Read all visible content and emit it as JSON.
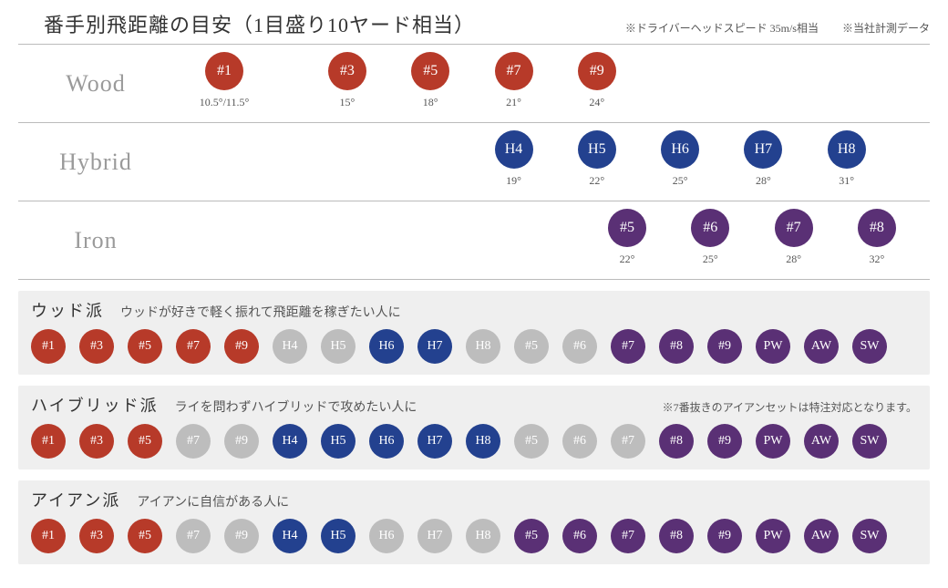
{
  "title": "番手別飛距離の目安（1目盛り10ヤード相当）",
  "notes": [
    "※ドライバーヘッドスピード 35m/s相当",
    "※当社計測データ"
  ],
  "colors": {
    "wood": "#b73a29",
    "hybrid": "#23418f",
    "iron": "#5a3075",
    "muted": "#bdbdbd"
  },
  "chart": {
    "rows": [
      {
        "label": "Wood",
        "color_key": "wood",
        "clubs": [
          {
            "tag": "#1",
            "loft": "10.5°/11.5°",
            "pos": 0.06
          },
          {
            "tag": "#3",
            "loft": "15°",
            "pos": 0.23
          },
          {
            "tag": "#5",
            "loft": "18°",
            "pos": 0.34
          },
          {
            "tag": "#7",
            "loft": "21°",
            "pos": 0.45
          },
          {
            "tag": "#9",
            "loft": "24°",
            "pos": 0.56
          }
        ]
      },
      {
        "label": "Hybrid",
        "color_key": "hybrid",
        "clubs": [
          {
            "tag": "H4",
            "loft": "19°",
            "pos": 0.45
          },
          {
            "tag": "H5",
            "loft": "22°",
            "pos": 0.56
          },
          {
            "tag": "H6",
            "loft": "25°",
            "pos": 0.67
          },
          {
            "tag": "H7",
            "loft": "28°",
            "pos": 0.78
          },
          {
            "tag": "H8",
            "loft": "31°",
            "pos": 0.89
          }
        ]
      },
      {
        "label": "Iron",
        "color_key": "iron",
        "clubs": [
          {
            "tag": "#5",
            "loft": "22°",
            "pos": 0.6
          },
          {
            "tag": "#6",
            "loft": "25°",
            "pos": 0.71
          },
          {
            "tag": "#7",
            "loft": "28°",
            "pos": 0.82
          },
          {
            "tag": "#8",
            "loft": "32°",
            "pos": 0.93
          }
        ]
      }
    ]
  },
  "recs": [
    {
      "title": "ウッド派",
      "sub": "ウッドが好きで軽く振れて飛距離を稼ぎたい人に",
      "note": "",
      "chips": [
        {
          "t": "#1",
          "c": "wood"
        },
        {
          "t": "#3",
          "c": "wood"
        },
        {
          "t": "#5",
          "c": "wood"
        },
        {
          "t": "#7",
          "c": "wood"
        },
        {
          "t": "#9",
          "c": "wood"
        },
        {
          "t": "H4",
          "c": "muted"
        },
        {
          "t": "H5",
          "c": "muted"
        },
        {
          "t": "H6",
          "c": "hybrid"
        },
        {
          "t": "H7",
          "c": "hybrid"
        },
        {
          "t": "H8",
          "c": "muted"
        },
        {
          "t": "#5",
          "c": "muted"
        },
        {
          "t": "#6",
          "c": "muted"
        },
        {
          "t": "#7",
          "c": "iron"
        },
        {
          "t": "#8",
          "c": "iron"
        },
        {
          "t": "#9",
          "c": "iron"
        },
        {
          "t": "PW",
          "c": "iron"
        },
        {
          "t": "AW",
          "c": "iron"
        },
        {
          "t": "SW",
          "c": "iron"
        }
      ]
    },
    {
      "title": "ハイブリッド派",
      "sub": "ライを問わずハイブリッドで攻めたい人に",
      "note": "※7番抜きのアイアンセットは特注対応となります。",
      "chips": [
        {
          "t": "#1",
          "c": "wood"
        },
        {
          "t": "#3",
          "c": "wood"
        },
        {
          "t": "#5",
          "c": "wood"
        },
        {
          "t": "#7",
          "c": "muted"
        },
        {
          "t": "#9",
          "c": "muted"
        },
        {
          "t": "H4",
          "c": "hybrid"
        },
        {
          "t": "H5",
          "c": "hybrid"
        },
        {
          "t": "H6",
          "c": "hybrid"
        },
        {
          "t": "H7",
          "c": "hybrid"
        },
        {
          "t": "H8",
          "c": "hybrid"
        },
        {
          "t": "#5",
          "c": "muted"
        },
        {
          "t": "#6",
          "c": "muted"
        },
        {
          "t": "#7",
          "c": "muted"
        },
        {
          "t": "#8",
          "c": "iron"
        },
        {
          "t": "#9",
          "c": "iron"
        },
        {
          "t": "PW",
          "c": "iron"
        },
        {
          "t": "AW",
          "c": "iron"
        },
        {
          "t": "SW",
          "c": "iron"
        }
      ]
    },
    {
      "title": "アイアン派",
      "sub": "アイアンに自信がある人に",
      "note": "",
      "chips": [
        {
          "t": "#1",
          "c": "wood"
        },
        {
          "t": "#3",
          "c": "wood"
        },
        {
          "t": "#5",
          "c": "wood"
        },
        {
          "t": "#7",
          "c": "muted"
        },
        {
          "t": "#9",
          "c": "muted"
        },
        {
          "t": "H4",
          "c": "hybrid"
        },
        {
          "t": "H5",
          "c": "hybrid"
        },
        {
          "t": "H6",
          "c": "muted"
        },
        {
          "t": "H7",
          "c": "muted"
        },
        {
          "t": "H8",
          "c": "muted"
        },
        {
          "t": "#5",
          "c": "iron"
        },
        {
          "t": "#6",
          "c": "iron"
        },
        {
          "t": "#7",
          "c": "iron"
        },
        {
          "t": "#8",
          "c": "iron"
        },
        {
          "t": "#9",
          "c": "iron"
        },
        {
          "t": "PW",
          "c": "iron"
        },
        {
          "t": "AW",
          "c": "iron"
        },
        {
          "t": "SW",
          "c": "iron"
        }
      ]
    }
  ]
}
